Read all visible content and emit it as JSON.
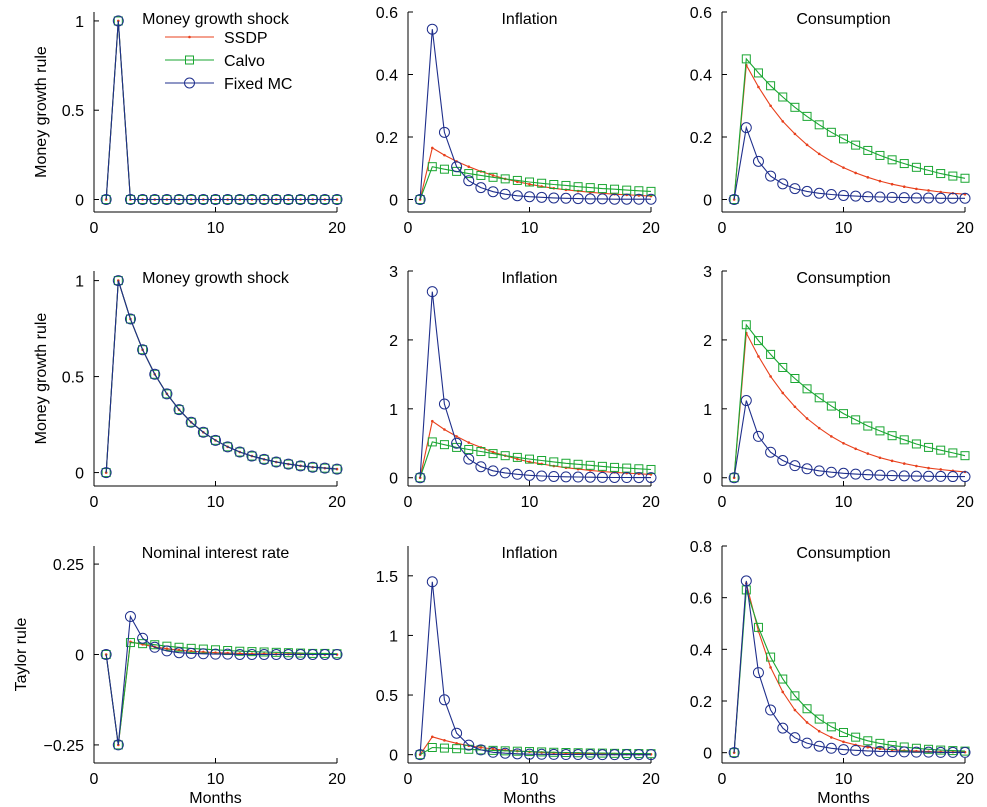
{
  "figure": {
    "row_labels": [
      "Money growth rule",
      "Money growth rule",
      "Taylor rule"
    ],
    "xlabel": "Months",
    "legend": [
      {
        "name": "SSDP",
        "color": "#e8401c",
        "marker": "dot"
      },
      {
        "name": "Calvo",
        "color": "#1aa632",
        "marker": "square"
      },
      {
        "name": "Fixed MC",
        "color": "#1f2f8c",
        "marker": "circle"
      }
    ]
  },
  "chart_data": [
    {
      "type": "line",
      "title": "Money growth shock",
      "xlabel": "",
      "ylabel": "Money growth rule",
      "xlim": [
        0,
        20
      ],
      "ylim": [
        -0.07,
        1.05
      ],
      "xticks": [
        0,
        10,
        20
      ],
      "xticklabels": [
        "0",
        "10",
        "20"
      ],
      "yticks": [
        0,
        0.5,
        1
      ],
      "yticklabels": [
        "0",
        "0.5",
        "1"
      ],
      "x": [
        1,
        2,
        3,
        4,
        5,
        6,
        7,
        8,
        9,
        10,
        11,
        12,
        13,
        14,
        15,
        16,
        17,
        18,
        19,
        20
      ],
      "series": [
        {
          "name": "SSDP",
          "values": [
            0,
            1,
            0,
            0,
            0,
            0,
            0,
            0,
            0,
            0,
            0,
            0,
            0,
            0,
            0,
            0,
            0,
            0,
            0,
            0
          ]
        },
        {
          "name": "Calvo",
          "values": [
            0,
            1,
            0,
            0,
            0,
            0,
            0,
            0,
            0,
            0,
            0,
            0,
            0,
            0,
            0,
            0,
            0,
            0,
            0,
            0
          ]
        },
        {
          "name": "Fixed MC",
          "values": [
            0,
            1,
            0,
            0,
            0,
            0,
            0,
            0,
            0,
            0,
            0,
            0,
            0,
            0,
            0,
            0,
            0,
            0,
            0,
            0
          ]
        }
      ]
    },
    {
      "type": "line",
      "title": "Inflation",
      "xlabel": "",
      "ylabel": "",
      "xlim": [
        0,
        20
      ],
      "ylim": [
        -0.04,
        0.6
      ],
      "xticks": [
        0,
        10,
        20
      ],
      "xticklabels": [
        "0",
        "10",
        "20"
      ],
      "yticks": [
        0,
        0.2,
        0.4,
        0.6
      ],
      "yticklabels": [
        "0",
        "0.2",
        "0.4",
        "0.6"
      ],
      "x": [
        1,
        2,
        3,
        4,
        5,
        6,
        7,
        8,
        9,
        10,
        11,
        12,
        13,
        14,
        15,
        16,
        17,
        18,
        19,
        20
      ],
      "series": [
        {
          "name": "SSDP",
          "values": [
            0,
            0.165,
            0.142,
            0.122,
            0.105,
            0.09,
            0.077,
            0.066,
            0.057,
            0.049,
            0.042,
            0.036,
            0.031,
            0.027,
            0.023,
            0.02,
            0.017,
            0.015,
            0.013,
            0.011
          ]
        },
        {
          "name": "Calvo",
          "values": [
            0,
            0.105,
            0.097,
            0.09,
            0.083,
            0.077,
            0.071,
            0.066,
            0.061,
            0.056,
            0.052,
            0.048,
            0.045,
            0.041,
            0.038,
            0.035,
            0.033,
            0.03,
            0.028,
            0.026
          ]
        },
        {
          "name": "Fixed MC",
          "values": [
            0,
            0.545,
            0.215,
            0.105,
            0.06,
            0.038,
            0.025,
            0.017,
            0.012,
            0.009,
            0.007,
            0.005,
            0.004,
            0.003,
            0.002,
            0.002,
            0.001,
            0.001,
            0.001,
            0.001
          ]
        }
      ]
    },
    {
      "type": "line",
      "title": "Consumption",
      "xlabel": "",
      "ylabel": "",
      "xlim": [
        0,
        20
      ],
      "ylim": [
        -0.04,
        0.6
      ],
      "xticks": [
        0,
        10,
        20
      ],
      "xticklabels": [
        "0",
        "10",
        "20"
      ],
      "yticks": [
        0,
        0.2,
        0.4,
        0.6
      ],
      "yticklabels": [
        "0",
        "0.2",
        "0.4",
        "0.6"
      ],
      "x": [
        1,
        2,
        3,
        4,
        5,
        6,
        7,
        8,
        9,
        10,
        11,
        12,
        13,
        14,
        15,
        16,
        17,
        18,
        19,
        20
      ],
      "series": [
        {
          "name": "SSDP",
          "values": [
            0,
            0.43,
            0.36,
            0.3,
            0.25,
            0.21,
            0.175,
            0.146,
            0.122,
            0.102,
            0.085,
            0.071,
            0.059,
            0.049,
            0.041,
            0.034,
            0.029,
            0.024,
            0.02,
            0.017
          ]
        },
        {
          "name": "Calvo",
          "values": [
            0,
            0.45,
            0.405,
            0.364,
            0.328,
            0.295,
            0.266,
            0.239,
            0.215,
            0.194,
            0.174,
            0.157,
            0.141,
            0.127,
            0.115,
            0.103,
            0.093,
            0.083,
            0.075,
            0.068
          ]
        },
        {
          "name": "Fixed MC",
          "values": [
            0,
            0.23,
            0.122,
            0.075,
            0.05,
            0.035,
            0.026,
            0.02,
            0.016,
            0.013,
            0.011,
            0.009,
            0.008,
            0.007,
            0.006,
            0.005,
            0.005,
            0.004,
            0.004,
            0.004
          ]
        }
      ]
    },
    {
      "type": "line",
      "title": "Money growth shock",
      "xlabel": "",
      "ylabel": "Money growth rule",
      "xlim": [
        0,
        20
      ],
      "ylim": [
        -0.07,
        1.05
      ],
      "xticks": [
        0,
        10,
        20
      ],
      "xticklabels": [
        "0",
        "10",
        "20"
      ],
      "yticks": [
        0,
        0.5,
        1
      ],
      "yticklabels": [
        "0",
        "0.5",
        "1"
      ],
      "x": [
        1,
        2,
        3,
        4,
        5,
        6,
        7,
        8,
        9,
        10,
        11,
        12,
        13,
        14,
        15,
        16,
        17,
        18,
        19,
        20
      ],
      "series": [
        {
          "name": "SSDP",
          "values": [
            0,
            1,
            0.8,
            0.64,
            0.512,
            0.41,
            0.328,
            0.262,
            0.21,
            0.168,
            0.134,
            0.107,
            0.086,
            0.069,
            0.055,
            0.044,
            0.035,
            0.028,
            0.023,
            0.018
          ]
        },
        {
          "name": "Calvo",
          "values": [
            0,
            1,
            0.8,
            0.64,
            0.512,
            0.41,
            0.328,
            0.262,
            0.21,
            0.168,
            0.134,
            0.107,
            0.086,
            0.069,
            0.055,
            0.044,
            0.035,
            0.028,
            0.023,
            0.018
          ]
        },
        {
          "name": "Fixed MC",
          "values": [
            0,
            1,
            0.8,
            0.64,
            0.512,
            0.41,
            0.328,
            0.262,
            0.21,
            0.168,
            0.134,
            0.107,
            0.086,
            0.069,
            0.055,
            0.044,
            0.035,
            0.028,
            0.023,
            0.018
          ]
        }
      ]
    },
    {
      "type": "line",
      "title": "Inflation",
      "xlabel": "",
      "ylabel": "",
      "xlim": [
        0,
        20
      ],
      "ylim": [
        -0.12,
        3
      ],
      "xticks": [
        0,
        10,
        20
      ],
      "xticklabels": [
        "0",
        "10",
        "20"
      ],
      "yticks": [
        0,
        1,
        2,
        3
      ],
      "yticklabels": [
        "0",
        "1",
        "2",
        "3"
      ],
      "x": [
        1,
        2,
        3,
        4,
        5,
        6,
        7,
        8,
        9,
        10,
        11,
        12,
        13,
        14,
        15,
        16,
        17,
        18,
        19,
        20
      ],
      "series": [
        {
          "name": "SSDP",
          "values": [
            0,
            0.82,
            0.7,
            0.6,
            0.51,
            0.44,
            0.37,
            0.32,
            0.27,
            0.23,
            0.2,
            0.17,
            0.145,
            0.125,
            0.107,
            0.091,
            0.078,
            0.067,
            0.057,
            0.049
          ]
        },
        {
          "name": "Calvo",
          "values": [
            0,
            0.52,
            0.48,
            0.44,
            0.41,
            0.38,
            0.35,
            0.32,
            0.295,
            0.27,
            0.25,
            0.23,
            0.21,
            0.195,
            0.18,
            0.165,
            0.15,
            0.14,
            0.13,
            0.12
          ]
        },
        {
          "name": "Fixed MC",
          "values": [
            0,
            2.7,
            1.07,
            0.5,
            0.27,
            0.16,
            0.1,
            0.07,
            0.05,
            0.035,
            0.025,
            0.018,
            0.013,
            0.01,
            0.007,
            0.005,
            0.004,
            0.003,
            0.002,
            0.002
          ]
        }
      ]
    },
    {
      "type": "line",
      "title": "Consumption",
      "xlabel": "",
      "ylabel": "",
      "xlim": [
        0,
        20
      ],
      "ylim": [
        -0.12,
        3
      ],
      "xticks": [
        0,
        10,
        20
      ],
      "xticklabels": [
        "0",
        "10",
        "20"
      ],
      "yticks": [
        0,
        1,
        2,
        3
      ],
      "yticklabels": [
        "0",
        "1",
        "2",
        "3"
      ],
      "x": [
        1,
        2,
        3,
        4,
        5,
        6,
        7,
        8,
        9,
        10,
        11,
        12,
        13,
        14,
        15,
        16,
        17,
        18,
        19,
        20
      ],
      "series": [
        {
          "name": "SSDP",
          "values": [
            0,
            2.1,
            1.76,
            1.47,
            1.23,
            1.03,
            0.86,
            0.72,
            0.6,
            0.5,
            0.42,
            0.35,
            0.29,
            0.245,
            0.205,
            0.17,
            0.14,
            0.12,
            0.1,
            0.085
          ]
        },
        {
          "name": "Calvo",
          "values": [
            0,
            2.22,
            1.99,
            1.79,
            1.6,
            1.44,
            1.29,
            1.16,
            1.04,
            0.93,
            0.84,
            0.75,
            0.68,
            0.61,
            0.55,
            0.49,
            0.44,
            0.4,
            0.36,
            0.32
          ]
        },
        {
          "name": "Fixed MC",
          "values": [
            0,
            1.12,
            0.6,
            0.37,
            0.25,
            0.175,
            0.13,
            0.1,
            0.08,
            0.065,
            0.053,
            0.044,
            0.037,
            0.031,
            0.027,
            0.024,
            0.021,
            0.019,
            0.017,
            0.016
          ]
        }
      ]
    },
    {
      "type": "line",
      "title": "Nominal interest rate",
      "xlabel": "Months",
      "ylabel": "Taylor rule",
      "xlim": [
        0,
        20
      ],
      "ylim": [
        -0.3,
        0.3
      ],
      "xticks": [
        0,
        10,
        20
      ],
      "xticklabels": [
        "0",
        "10",
        "20"
      ],
      "yticks": [
        -0.25,
        0,
        0.25
      ],
      "yticklabels": [
        "−0.25",
        "0",
        "0.25"
      ],
      "x": [
        1,
        2,
        3,
        4,
        5,
        6,
        7,
        8,
        9,
        10,
        11,
        12,
        13,
        14,
        15,
        16,
        17,
        18,
        19,
        20
      ],
      "series": [
        {
          "name": "SSDP",
          "values": [
            0,
            -0.25,
            0.035,
            0.028,
            0.021,
            0.016,
            0.012,
            0.009,
            0.007,
            0.005,
            0.004,
            0.003,
            0.002,
            0.002,
            0.001,
            0.001,
            0.001,
            0.001,
            0,
            0
          ]
        },
        {
          "name": "Calvo",
          "values": [
            0,
            -0.25,
            0.033,
            0.03,
            0.027,
            0.023,
            0.02,
            0.017,
            0.015,
            0.013,
            0.011,
            0.009,
            0.008,
            0.007,
            0.006,
            0.005,
            0.004,
            0.003,
            0.003,
            0.002
          ]
        },
        {
          "name": "Fixed MC",
          "values": [
            0,
            -0.25,
            0.105,
            0.045,
            0.02,
            0.01,
            0.005,
            0.003,
            0.002,
            0.001,
            0.001,
            0,
            0,
            0,
            0,
            0,
            0,
            0,
            0,
            0
          ]
        }
      ]
    },
    {
      "type": "line",
      "title": "Inflation",
      "xlabel": "Months",
      "ylabel": "",
      "xlim": [
        0,
        20
      ],
      "ylim": [
        -0.07,
        1.75
      ],
      "xticks": [
        0,
        10,
        20
      ],
      "xticklabels": [
        "0",
        "10",
        "20"
      ],
      "yticks": [
        0,
        0.5,
        1,
        1.5
      ],
      "yticklabels": [
        "0",
        "0.5",
        "1",
        "1.5"
      ],
      "x": [
        1,
        2,
        3,
        4,
        5,
        6,
        7,
        8,
        9,
        10,
        11,
        12,
        13,
        14,
        15,
        16,
        17,
        18,
        19,
        20
      ],
      "series": [
        {
          "name": "SSDP",
          "values": [
            0,
            0.15,
            0.12,
            0.095,
            0.075,
            0.06,
            0.047,
            0.037,
            0.03,
            0.024,
            0.019,
            0.015,
            0.012,
            0.01,
            0.008,
            0.006,
            0.005,
            0.004,
            0.003,
            0.003
          ]
        },
        {
          "name": "Calvo",
          "values": [
            0,
            0.06,
            0.055,
            0.05,
            0.045,
            0.04,
            0.036,
            0.032,
            0.029,
            0.026,
            0.023,
            0.02,
            0.018,
            0.016,
            0.014,
            0.013,
            0.011,
            0.01,
            0.009,
            0.008
          ]
        },
        {
          "name": "Fixed MC",
          "values": [
            0,
            1.45,
            0.46,
            0.18,
            0.08,
            0.04,
            0.02,
            0.012,
            0.007,
            0.004,
            0.003,
            0.002,
            0.001,
            0.001,
            0.001,
            0,
            0,
            0,
            0,
            0
          ]
        }
      ]
    },
    {
      "type": "line",
      "title": "Consumption",
      "xlabel": "Months",
      "ylabel": "",
      "xlim": [
        0,
        20
      ],
      "ylim": [
        -0.04,
        0.8
      ],
      "xticks": [
        0,
        10,
        20
      ],
      "xticklabels": [
        "0",
        "10",
        "20"
      ],
      "yticks": [
        0,
        0.2,
        0.4,
        0.6,
        0.8
      ],
      "yticklabels": [
        "0",
        "0.2",
        "0.4",
        "0.6",
        "0.8"
      ],
      "x": [
        1,
        2,
        3,
        4,
        5,
        6,
        7,
        8,
        9,
        10,
        11,
        12,
        13,
        14,
        15,
        16,
        17,
        18,
        19,
        20
      ],
      "series": [
        {
          "name": "SSDP",
          "values": [
            0,
            0.655,
            0.47,
            0.33,
            0.235,
            0.165,
            0.117,
            0.083,
            0.059,
            0.042,
            0.03,
            0.021,
            0.015,
            0.011,
            0.008,
            0.006,
            0.004,
            0.003,
            0.002,
            0.002
          ]
        },
        {
          "name": "Calvo",
          "values": [
            0,
            0.63,
            0.485,
            0.37,
            0.285,
            0.22,
            0.17,
            0.13,
            0.1,
            0.078,
            0.06,
            0.046,
            0.036,
            0.028,
            0.022,
            0.017,
            0.013,
            0.01,
            0.008,
            0.006
          ]
        },
        {
          "name": "Fixed MC",
          "values": [
            0,
            0.665,
            0.31,
            0.165,
            0.095,
            0.058,
            0.037,
            0.025,
            0.017,
            0.012,
            0.009,
            0.007,
            0.005,
            0.004,
            0.003,
            0.002,
            0.002,
            0.001,
            0.001,
            0.001
          ]
        }
      ]
    }
  ]
}
